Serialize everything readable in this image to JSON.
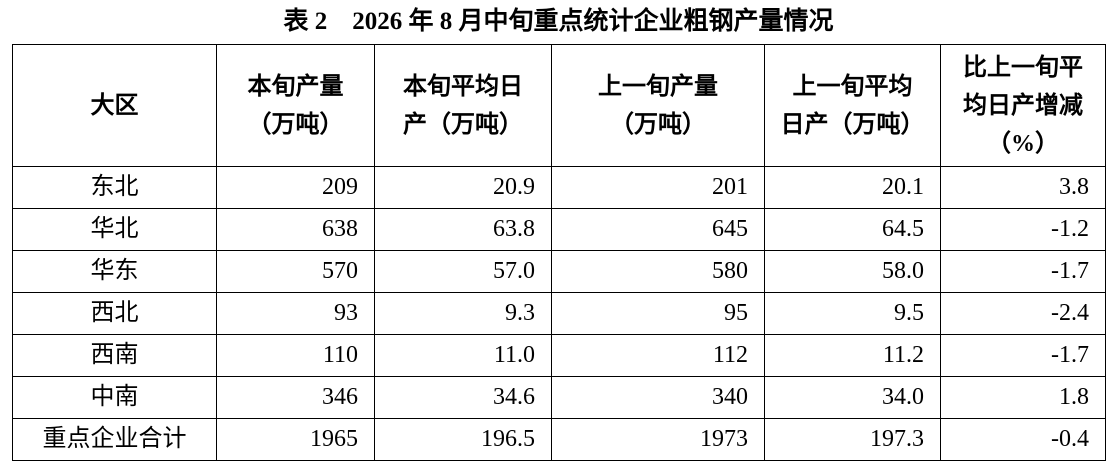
{
  "title": "表 2　2026 年 8 月中旬重点统计企业粗钢产量情况",
  "table": {
    "header": [
      [
        "大区"
      ],
      [
        "本旬产量",
        "（万吨）"
      ],
      [
        "本旬平均日",
        "产（万吨）"
      ],
      [
        "上一旬产量",
        "（万吨）"
      ],
      [
        "上一旬平均",
        "日产（万吨）"
      ],
      [
        "比上一旬平",
        "均日产增减",
        "（%）"
      ]
    ],
    "rows": [
      [
        "东北",
        "209",
        "20.9",
        "201",
        "20.1",
        "3.8"
      ],
      [
        "华北",
        "638",
        "63.8",
        "645",
        "64.5",
        "-1.2"
      ],
      [
        "华东",
        "570",
        "57.0",
        "580",
        "58.0",
        "-1.7"
      ],
      [
        "西北",
        "93",
        "9.3",
        "95",
        "9.5",
        "-2.4"
      ],
      [
        "西南",
        "110",
        "11.0",
        "112",
        "11.2",
        "-1.7"
      ],
      [
        "中南",
        "346",
        "34.6",
        "340",
        "34.0",
        "1.8"
      ],
      [
        "重点企业合计",
        "1965",
        "196.5",
        "1973",
        "197.3",
        "-0.4"
      ]
    ]
  }
}
